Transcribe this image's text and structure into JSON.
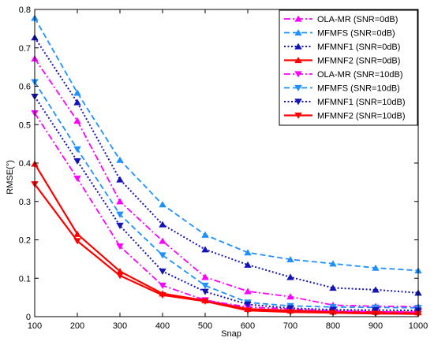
{
  "chart_data": {
    "type": "line",
    "xlabel": "Snap",
    "ylabel": "RMSE(°)",
    "xlim": [
      100,
      1000
    ],
    "ylim": [
      0,
      0.8
    ],
    "xticks": [
      100,
      200,
      300,
      400,
      500,
      600,
      700,
      800,
      900,
      1000
    ],
    "yticks": [
      0,
      0.1,
      0.2,
      0.3,
      0.4,
      0.5,
      0.6,
      0.7,
      0.8
    ],
    "ytick_labels": [
      "0",
      "0.1",
      "0.2",
      "0.3",
      "0.4",
      "0.5",
      "0.6",
      "0.7",
      "0.8"
    ],
    "grid": false,
    "legend_position": "top-right",
    "x": [
      100,
      200,
      300,
      400,
      500,
      600,
      700,
      800,
      900,
      1000
    ],
    "series": [
      {
        "name": "OLA-MR (SNR=0dB)",
        "color": "#ff00ff",
        "dash": "dashdot",
        "marker": "triangle-up",
        "values": [
          0.672,
          0.51,
          0.3,
          0.197,
          0.103,
          0.066,
          0.052,
          0.03,
          0.027,
          0.026
        ]
      },
      {
        "name": "MFMFS  (SNR=0dB)",
        "color": "#1e90ff",
        "dash": "dashed",
        "marker": "triangle-up",
        "values": [
          0.778,
          0.583,
          0.408,
          0.292,
          0.213,
          0.167,
          0.149,
          0.138,
          0.127,
          0.12
        ]
      },
      {
        "name": "MFMNF1 (SNR=0dB)",
        "color": "#1414b4",
        "dash": "dotted",
        "marker": "triangle-up",
        "values": [
          0.727,
          0.558,
          0.357,
          0.24,
          0.175,
          0.135,
          0.103,
          0.075,
          0.07,
          0.062
        ]
      },
      {
        "name": "MFMNF2 (SNR=0dB)",
        "color": "#ff0000",
        "dash": "solid",
        "marker": "triangle-up",
        "values": [
          0.398,
          0.215,
          0.118,
          0.06,
          0.042,
          0.02,
          0.016,
          0.013,
          0.012,
          0.011
        ]
      },
      {
        "name": "OLA-MR (SNR=10dB)",
        "color": "#ff00ff",
        "dash": "dashdot",
        "marker": "triangle-down",
        "values": [
          0.53,
          0.36,
          0.183,
          0.081,
          0.043,
          0.025,
          0.02,
          0.015,
          0.013,
          0.012
        ]
      },
      {
        "name": "MFMFS (SNR=10dB)",
        "color": "#1e90ff",
        "dash": "dashed",
        "marker": "triangle-down",
        "values": [
          0.611,
          0.436,
          0.266,
          0.16,
          0.081,
          0.037,
          0.028,
          0.025,
          0.024,
          0.023
        ]
      },
      {
        "name": "MFMNF1 (SNR=10dB)",
        "color": "#1414b4",
        "dash": "dotted",
        "marker": "triangle-down",
        "values": [
          0.573,
          0.405,
          0.237,
          0.118,
          0.065,
          0.032,
          0.022,
          0.018,
          0.017,
          0.016
        ]
      },
      {
        "name": "MFMNF2 (SNR=10dB)",
        "color": "#ff0000",
        "dash": "solid",
        "marker": "triangle-down",
        "values": [
          0.345,
          0.197,
          0.107,
          0.056,
          0.04,
          0.016,
          0.012,
          0.01,
          0.008,
          0.007
        ]
      }
    ]
  }
}
